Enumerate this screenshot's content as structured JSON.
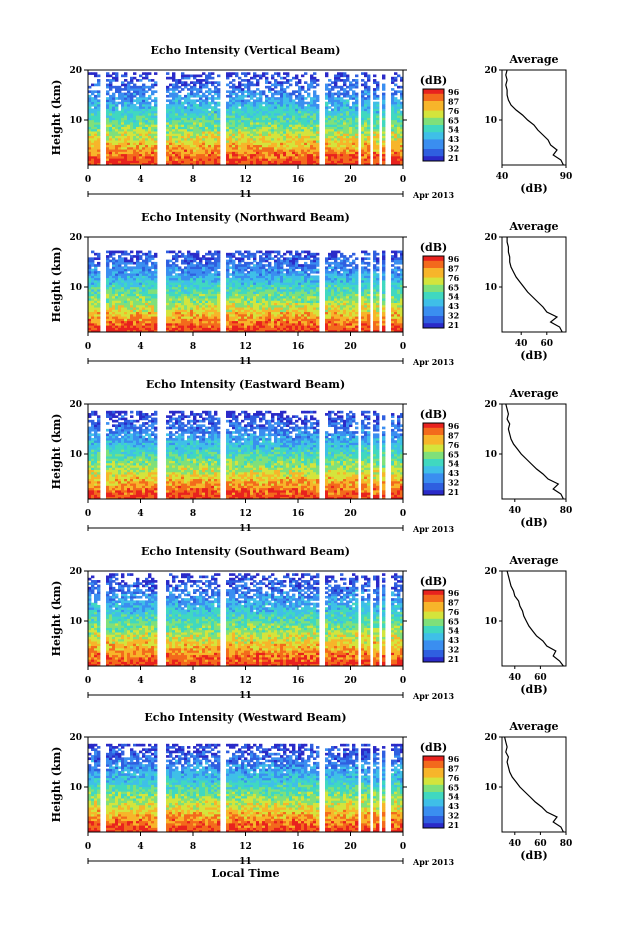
{
  "figure": {
    "x_label": "Local Time",
    "date_label": "Apr 2013",
    "day_label": "11",
    "colorbar_unit": "(dB)",
    "colorbar_ticks": [
      "96",
      "87",
      "76",
      "65",
      "54",
      "43",
      "32",
      "21"
    ],
    "palette": [
      "#2a2ac8",
      "#2f5fe0",
      "#3a8ef0",
      "#3fbfe8",
      "#40d8c0",
      "#7fe07a",
      "#d4e43c",
      "#f7b52a",
      "#f36a1c",
      "#e8221e"
    ]
  },
  "chart_data": [
    {
      "type": "heatmap",
      "beam": "Vertical",
      "title": "Echo Intensity (Vertical Beam)",
      "xlabel": "",
      "ylabel": "Height (km)",
      "xlim": [
        0,
        24
      ],
      "ylim": [
        1,
        20
      ],
      "x_ticks": [
        "0",
        "4",
        "8",
        "12",
        "16",
        "20",
        "0"
      ],
      "y_ticks": [
        "20",
        "10"
      ],
      "colorbar_range_db": [
        21,
        96
      ],
      "data_gaps_hours": [
        [
          1.0,
          1.3
        ],
        [
          5.3,
          6.0
        ],
        [
          10.0,
          10.5
        ],
        [
          17.6,
          18.0
        ],
        [
          20.6,
          20.8
        ],
        [
          21.4,
          21.6
        ],
        [
          22.1,
          22.3
        ],
        [
          22.7,
          23.0
        ]
      ],
      "top_height_km": 20,
      "profile": {
        "title": "Average",
        "xlabel": "(dB)",
        "xlim": [
          40,
          90
        ],
        "x_ticks": [
          "40",
          "90"
        ],
        "y_ticks": [
          "20",
          "10"
        ],
        "height_km": [
          1,
          2,
          3,
          4,
          5,
          6,
          7,
          8,
          9,
          10,
          11,
          12,
          13,
          14,
          15,
          16,
          17,
          18,
          19,
          20
        ],
        "db": [
          88,
          86,
          80,
          83,
          78,
          76,
          72,
          68,
          65,
          60,
          56,
          51,
          47,
          45,
          44,
          44,
          43,
          44,
          43,
          44
        ]
      }
    },
    {
      "type": "heatmap",
      "beam": "Northward",
      "title": "Echo Intensity (Northward Beam)",
      "xlabel": "",
      "ylabel": "Height (km)",
      "xlim": [
        0,
        24
      ],
      "ylim": [
        1,
        20
      ],
      "x_ticks": [
        "0",
        "4",
        "8",
        "12",
        "16",
        "20",
        "0"
      ],
      "y_ticks": [
        "20",
        "10"
      ],
      "colorbar_range_db": [
        21,
        96
      ],
      "data_gaps_hours": [
        [
          1.0,
          1.3
        ],
        [
          5.3,
          6.0
        ],
        [
          10.0,
          10.5
        ],
        [
          17.6,
          18.0
        ],
        [
          20.6,
          20.8
        ],
        [
          21.4,
          21.6
        ],
        [
          22.1,
          22.3
        ],
        [
          22.7,
          23.0
        ]
      ],
      "top_height_km": 18,
      "profile": {
        "title": "Average",
        "xlabel": "(dB)",
        "xlim": [
          25,
          75
        ],
        "x_ticks": [
          "40",
          "60"
        ],
        "y_ticks": [
          "20",
          "10"
        ],
        "height_km": [
          1,
          2,
          3,
          4,
          5,
          6,
          7,
          8,
          9,
          10,
          11,
          12,
          13,
          14,
          15,
          16,
          17,
          18,
          19,
          20
        ],
        "db": [
          72,
          70,
          63,
          68,
          60,
          57,
          53,
          49,
          45,
          42,
          39,
          36,
          34,
          32,
          31,
          31,
          30,
          30,
          29,
          29
        ]
      }
    },
    {
      "type": "heatmap",
      "beam": "Eastward",
      "title": "Echo Intensity (Eastward Beam)",
      "xlabel": "",
      "ylabel": "Height (km)",
      "xlim": [
        0,
        24
      ],
      "ylim": [
        1,
        20
      ],
      "x_ticks": [
        "0",
        "4",
        "8",
        "12",
        "16",
        "20",
        "0"
      ],
      "y_ticks": [
        "20",
        "10"
      ],
      "colorbar_range_db": [
        21,
        96
      ],
      "data_gaps_hours": [
        [
          1.0,
          1.3
        ],
        [
          5.3,
          6.0
        ],
        [
          10.0,
          10.5
        ],
        [
          17.6,
          18.0
        ],
        [
          20.6,
          20.8
        ],
        [
          21.4,
          21.6
        ],
        [
          22.1,
          22.3
        ],
        [
          22.7,
          23.0
        ]
      ],
      "top_height_km": 19,
      "profile": {
        "title": "Average",
        "xlabel": "(dB)",
        "xlim": [
          30,
          80
        ],
        "x_ticks": [
          "40",
          "80"
        ],
        "y_ticks": [
          "20",
          "10"
        ],
        "height_km": [
          1,
          2,
          3,
          4,
          5,
          6,
          7,
          8,
          9,
          10,
          11,
          12,
          13,
          14,
          15,
          16,
          17,
          18,
          19,
          20
        ],
        "db": [
          78,
          76,
          70,
          74,
          66,
          62,
          57,
          53,
          49,
          45,
          42,
          39,
          37,
          36,
          35,
          36,
          34,
          35,
          34,
          33
        ]
      }
    },
    {
      "type": "heatmap",
      "beam": "Southward",
      "title": "Echo Intensity (Southward Beam)",
      "xlabel": "",
      "ylabel": "Height (km)",
      "xlim": [
        0,
        24
      ],
      "ylim": [
        1,
        20
      ],
      "x_ticks": [
        "0",
        "4",
        "8",
        "12",
        "16",
        "20",
        "0"
      ],
      "y_ticks": [
        "20",
        "10"
      ],
      "colorbar_range_db": [
        21,
        96
      ],
      "data_gaps_hours": [
        [
          1.0,
          1.3
        ],
        [
          5.3,
          6.0
        ],
        [
          10.0,
          10.5
        ],
        [
          17.6,
          18.0
        ],
        [
          20.6,
          20.8
        ],
        [
          21.4,
          21.6
        ],
        [
          22.1,
          22.3
        ],
        [
          22.7,
          23.0
        ]
      ],
      "top_height_km": 20,
      "profile": {
        "title": "Average",
        "xlabel": "(dB)",
        "xlim": [
          30,
          80
        ],
        "x_ticks": [
          "40",
          "60"
        ],
        "y_ticks": [
          "20",
          "10"
        ],
        "height_km": [
          1,
          2,
          3,
          4,
          5,
          6,
          7,
          8,
          9,
          10,
          11,
          12,
          13,
          14,
          15,
          16,
          17,
          18,
          19,
          20
        ],
        "db": [
          78,
          75,
          70,
          72,
          65,
          62,
          57,
          54,
          51,
          49,
          47,
          46,
          44,
          43,
          40,
          39,
          37,
          36,
          35,
          34
        ]
      }
    },
    {
      "type": "heatmap",
      "beam": "Westward",
      "title": "Echo Intensity (Westward Beam)",
      "xlabel": "Local Time",
      "ylabel": "Height (km)",
      "xlim": [
        0,
        24
      ],
      "ylim": [
        1,
        20
      ],
      "x_ticks": [
        "0",
        "4",
        "8",
        "12",
        "16",
        "20",
        "0"
      ],
      "y_ticks": [
        "20",
        "10"
      ],
      "colorbar_range_db": [
        21,
        96
      ],
      "data_gaps_hours": [
        [
          1.0,
          1.3
        ],
        [
          5.3,
          6.0
        ],
        [
          10.0,
          10.5
        ],
        [
          17.6,
          18.0
        ],
        [
          20.6,
          20.8
        ],
        [
          21.4,
          21.6
        ],
        [
          22.1,
          22.3
        ],
        [
          22.7,
          23.0
        ]
      ],
      "top_height_km": 19,
      "profile": {
        "title": "Average",
        "xlabel": "(dB)",
        "xlim": [
          30,
          80
        ],
        "x_ticks": [
          "40",
          "60",
          "80"
        ],
        "y_ticks": [
          "20",
          "10"
        ],
        "height_km": [
          1,
          2,
          3,
          4,
          5,
          6,
          7,
          8,
          9,
          10,
          11,
          12,
          13,
          14,
          15,
          16,
          17,
          18,
          19,
          20
        ],
        "db": [
          78,
          76,
          70,
          73,
          65,
          61,
          56,
          52,
          48,
          44,
          41,
          38,
          36,
          35,
          34,
          35,
          33,
          34,
          33,
          32
        ]
      }
    }
  ]
}
